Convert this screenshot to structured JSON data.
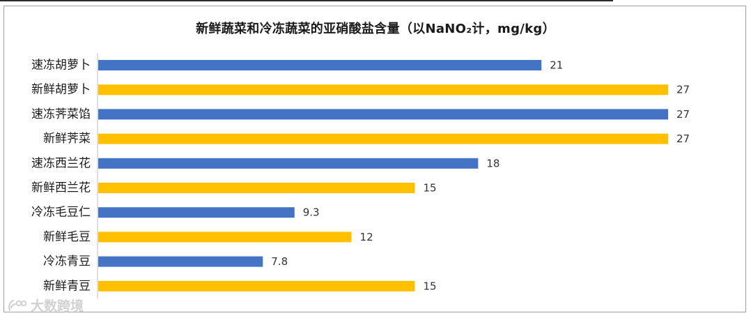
{
  "chart_data": {
    "type": "bar",
    "orientation": "horizontal",
    "title": "新鲜蔬菜和冷冻蔬菜的亚硝酸盐含量（以NaNO₂计，mg/kg）",
    "categories": [
      "速冻胡萝卜",
      "新鲜胡萝卜",
      "速冻荠菜馅",
      "新鲜荠菜",
      "速冻西兰花",
      "新鲜西兰花",
      "冷冻毛豆仁",
      "新鲜毛豆",
      "冷冻青豆",
      "新鲜青豆"
    ],
    "values": [
      21,
      27,
      27,
      27,
      18,
      15,
      9.3,
      12,
      7.8,
      15
    ],
    "value_labels": [
      "21",
      "27",
      "27",
      "27",
      "18",
      "15",
      "9.3",
      "12",
      "7.8",
      "15"
    ],
    "bar_colors": [
      "#4472c4",
      "#ffc000",
      "#4472c4",
      "#ffc000",
      "#4472c4",
      "#ffc000",
      "#4472c4",
      "#ffc000",
      "#4472c4",
      "#ffc000"
    ],
    "xlim": [
      0,
      27
    ],
    "grid": false,
    "legend": "none"
  },
  "watermark": {
    "text": "大数跨境"
  }
}
